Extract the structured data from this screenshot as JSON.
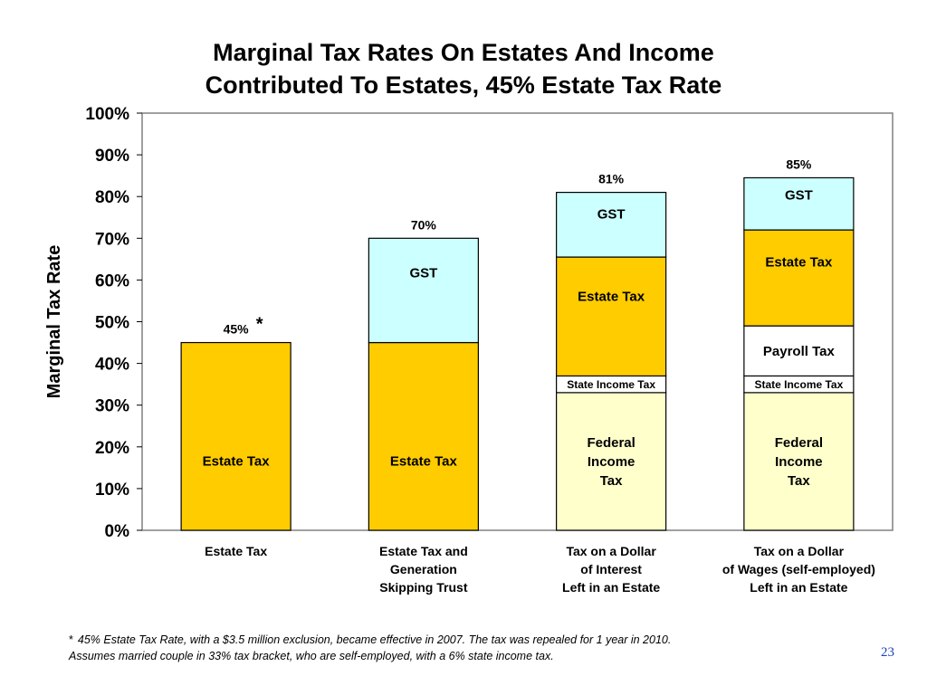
{
  "title_line1": "Marginal Tax Rates On Estates And  Income",
  "title_line2": "Contributed To Estates, 45% Estate Tax Rate",
  "chart_data": {
    "type": "bar",
    "stacked": true,
    "ylabel": "Marginal Tax Rate",
    "ylim": [
      0,
      100
    ],
    "yticks": [
      0,
      10,
      20,
      30,
      40,
      50,
      60,
      70,
      80,
      90,
      100
    ],
    "ytick_labels": [
      "0%",
      "10%",
      "20%",
      "30%",
      "40%",
      "50%",
      "60%",
      "70%",
      "80%",
      "90%",
      "100%"
    ],
    "grid": false,
    "categories": [
      [
        "Estate Tax"
      ],
      [
        "Estate Tax and",
        "Generation",
        "Skipping Trust"
      ],
      [
        "Tax on a Dollar",
        "of Interest",
        "Left in an Estate"
      ],
      [
        "Tax on a Dollar",
        "of Wages (self-employed)",
        "Left in an Estate"
      ]
    ],
    "bars": [
      {
        "total_label": "45%",
        "total_marker": "*",
        "segments": [
          {
            "label": "Estate Tax",
            "value": 45,
            "color": "#FFCC00"
          }
        ]
      },
      {
        "total_label": "70%",
        "segments": [
          {
            "label": "Estate Tax",
            "value": 45,
            "color": "#FFCC00"
          },
          {
            "label": "GST",
            "value": 25,
            "color": "#CCFFFF"
          }
        ]
      },
      {
        "total_label": "81%",
        "segments": [
          {
            "label": "Federal Income Tax",
            "value": 33,
            "color": "#FFFFCC"
          },
          {
            "label": "State Income Tax",
            "value": 4,
            "color": "#FFFFFF"
          },
          {
            "label": "Estate Tax",
            "value": 28.5,
            "color": "#FFCC00"
          },
          {
            "label": "GST",
            "value": 15.5,
            "color": "#CCFFFF"
          }
        ]
      },
      {
        "total_label": "85%",
        "segments": [
          {
            "label": "Federal Income Tax",
            "value": 33,
            "color": "#FFFFCC"
          },
          {
            "label": "State Income Tax",
            "value": 4,
            "color": "#FFFFFF"
          },
          {
            "label": "Payroll Tax",
            "value": 12,
            "color": "#FFFFFF"
          },
          {
            "label": "Estate Tax",
            "value": 23,
            "color": "#FFCC00"
          },
          {
            "label": "GST",
            "value": 12.5,
            "color": "#CCFFFF"
          }
        ]
      }
    ]
  },
  "footnote": {
    "marker": "*",
    "line1": "45% Estate Tax Rate, with a $3.5 million exclusion, became effective in 2007.  The tax was repealed for 1 year in 2010.",
    "line2": "Assumes married couple in 33% tax bracket, who are self-employed, with a 6% state income tax."
  },
  "page_number": "23"
}
